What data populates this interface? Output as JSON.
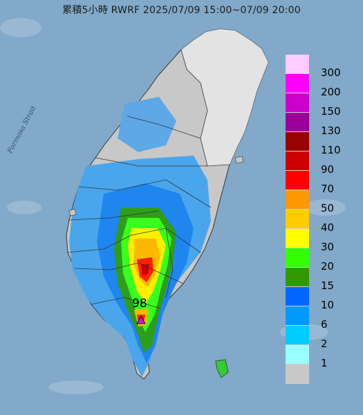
{
  "title": "累積5小時 RWRF 2025/07/09 15:00~07/09 20:00",
  "strait_label": "Formosa Strait",
  "peak": {
    "value": "98",
    "marker_color": "#c020e0"
  },
  "colors": {
    "sea": "#7fa7c7",
    "land_none": "#c8c8c8",
    "land_base": "#e6e6e6",
    "border": "#333333"
  },
  "legend": {
    "items": [
      {
        "label": "300",
        "color": "#ffccff"
      },
      {
        "label": "200",
        "color": "#ff00ff"
      },
      {
        "label": "150",
        "color": "#cc00cc"
      },
      {
        "label": "130",
        "color": "#990099"
      },
      {
        "label": "110",
        "color": "#990000"
      },
      {
        "label": "90",
        "color": "#cc0000"
      },
      {
        "label": "70",
        "color": "#ff0000"
      },
      {
        "label": "50",
        "color": "#ff9900"
      },
      {
        "label": "40",
        "color": "#ffcc00"
      },
      {
        "label": "30",
        "color": "#ffff00"
      },
      {
        "label": "20",
        "color": "#33ff00"
      },
      {
        "label": "15",
        "color": "#339900"
      },
      {
        "label": "10",
        "color": "#0066ff"
      },
      {
        "label": "6",
        "color": "#0099ff"
      },
      {
        "label": "2",
        "color": "#00ccff"
      },
      {
        "label": "1",
        "color": "#99ffff"
      },
      {
        "label": "",
        "color": "#c8c8c8"
      }
    ]
  }
}
